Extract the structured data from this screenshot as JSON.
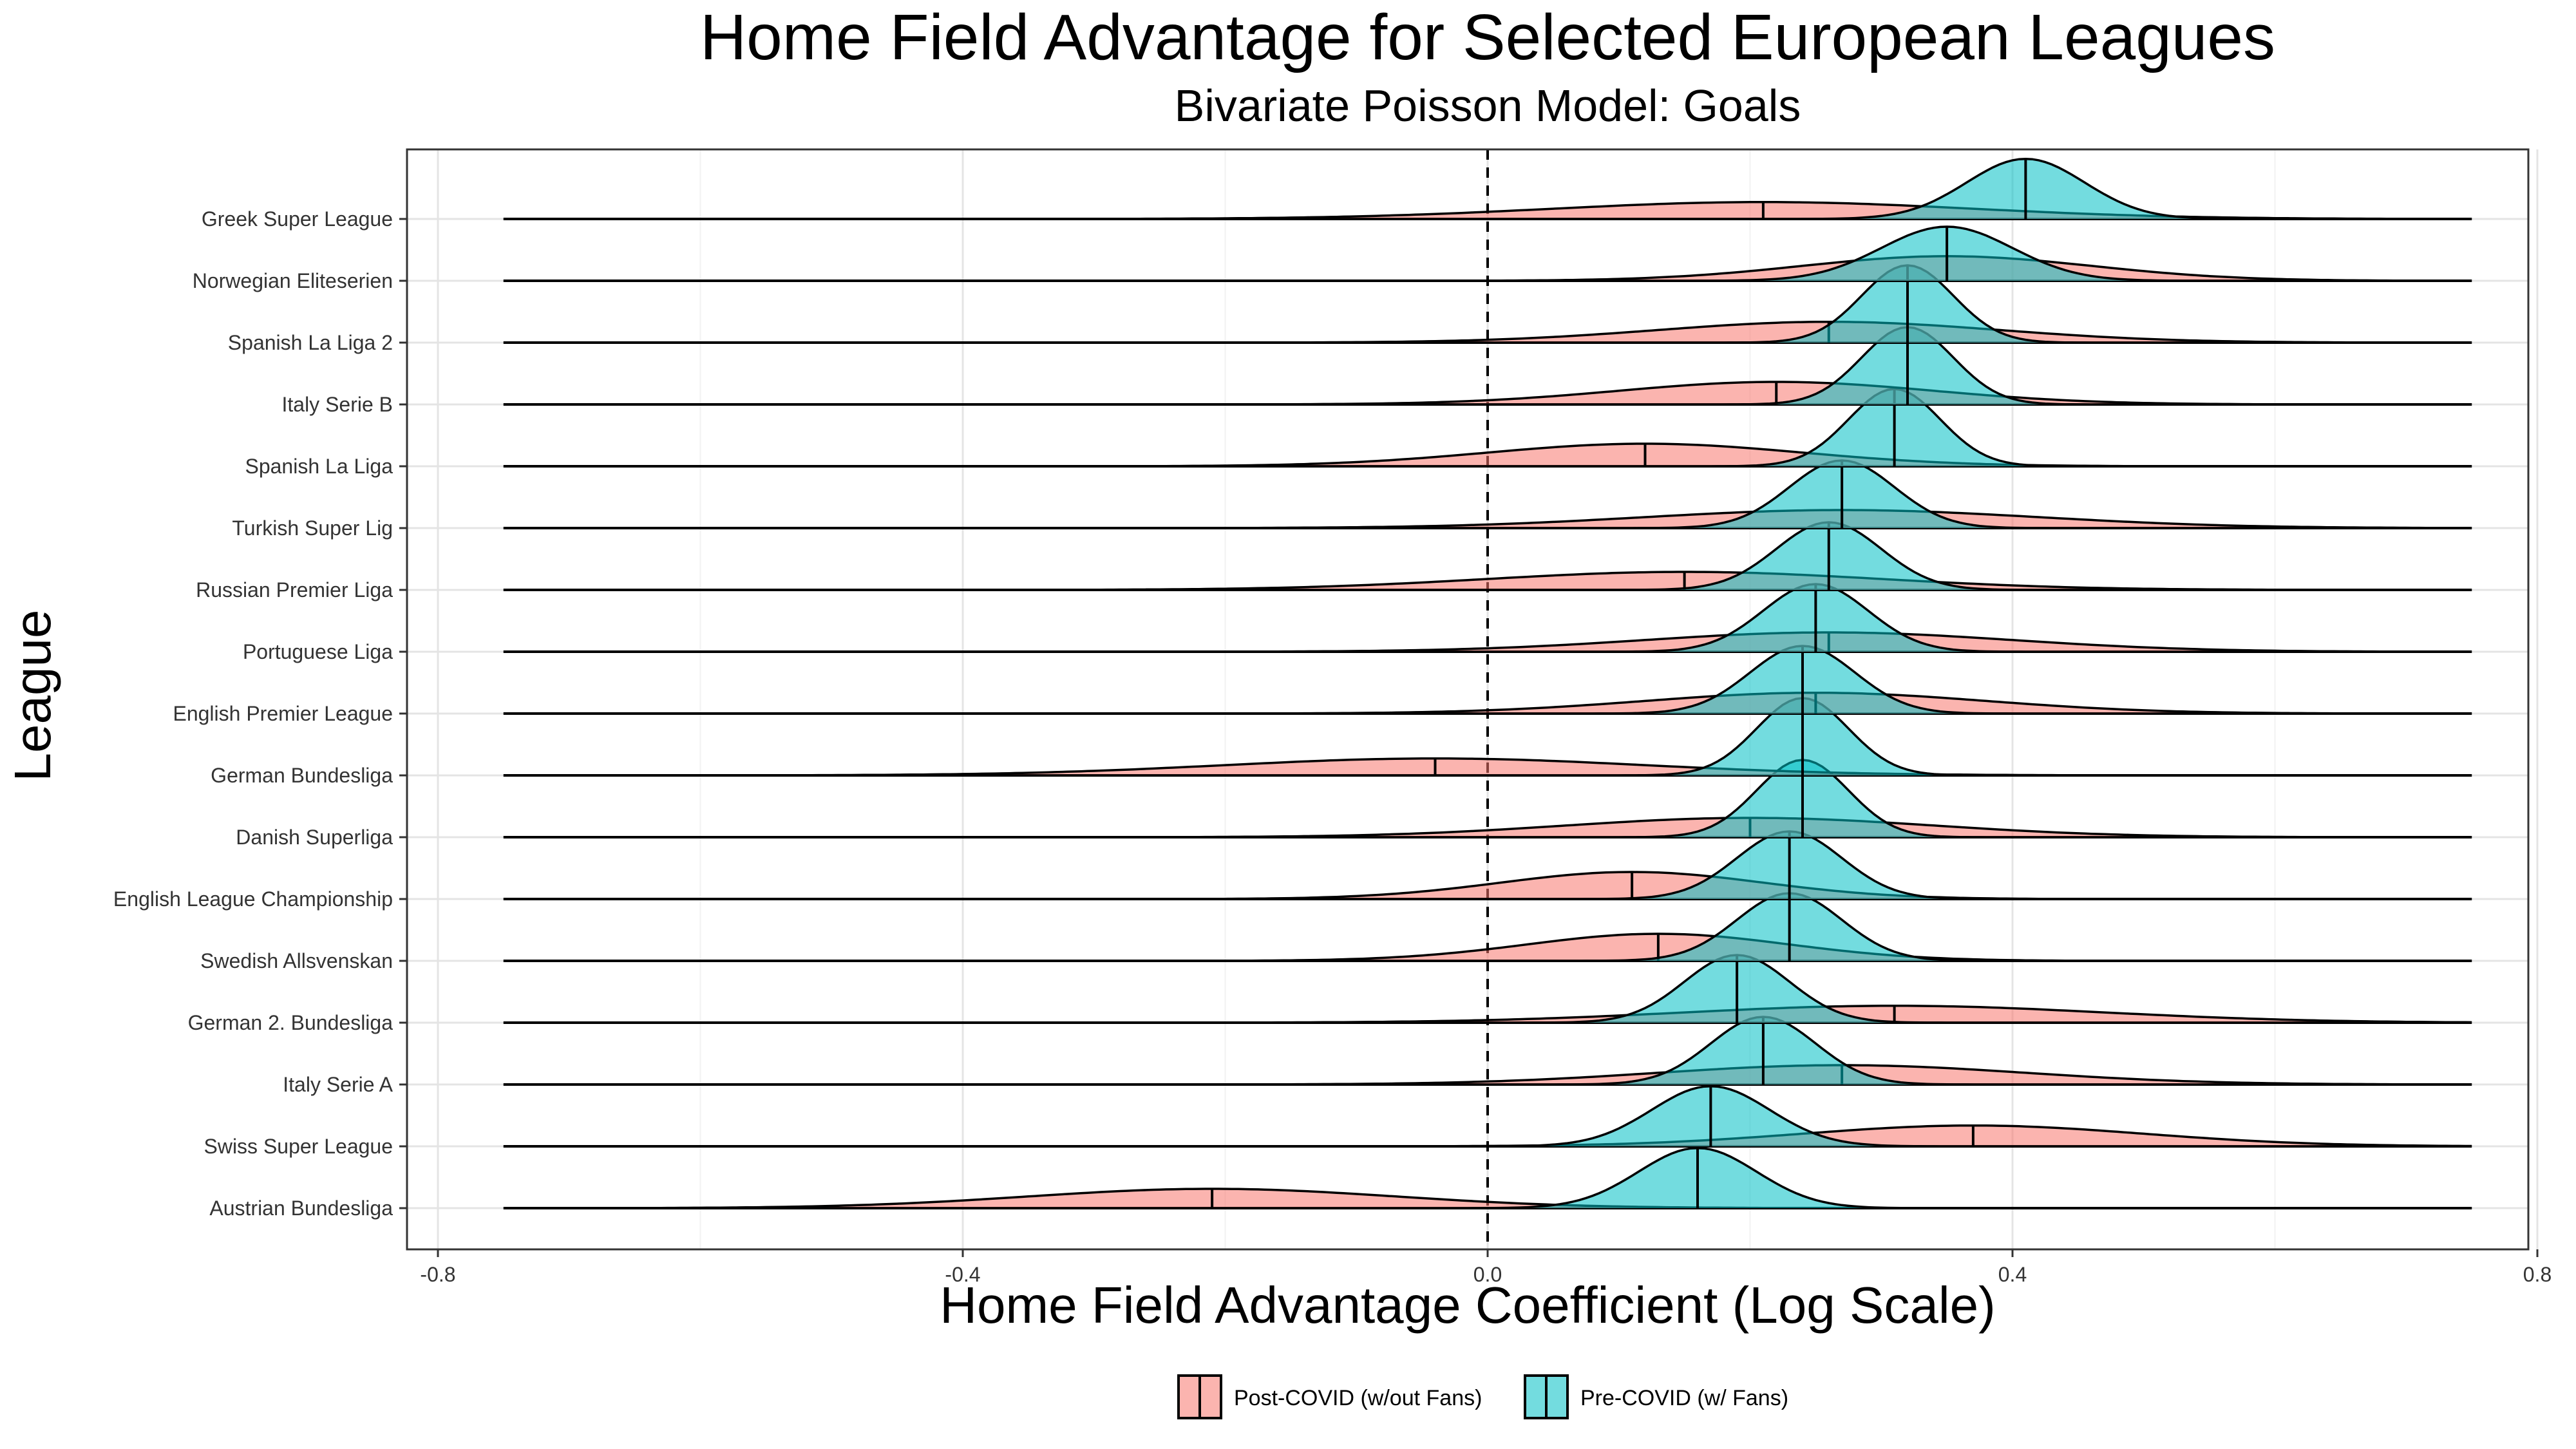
{
  "chart_data": {
    "type": "ridgeline",
    "title": "Home Field Advantage for Selected European Leagues",
    "subtitle": "Bivariate Poisson Model: Goals",
    "xlabel": "Home Field Advantage Coefficient (Log Scale)",
    "ylabel": "League",
    "xlim": [
      -0.8,
      0.8
    ],
    "x_ticks": [
      -0.8,
      -0.4,
      0.0,
      0.4,
      0.8
    ],
    "x_tick_labels": [
      "-0.8",
      "-0.4",
      "0.0",
      "0.4",
      "0.8"
    ],
    "reference_line": 0.0,
    "grid": true,
    "legend_position": "bottom",
    "series": [
      {
        "name": "Post-COVID (w/out Fans)",
        "color": "#F8766D"
      },
      {
        "name": "Pre-COVID (w/ Fans)",
        "color": "#00BFC4"
      }
    ],
    "leagues": [
      {
        "name": "Greek Super League",
        "post_median": 0.21,
        "post_sd": 0.16,
        "pre_median": 0.41,
        "pre_sd": 0.045
      },
      {
        "name": "Norwegian Eliteserien",
        "post_median": 0.35,
        "post_sd": 0.11,
        "pre_median": 0.35,
        "pre_sd": 0.05
      },
      {
        "name": "Spanish La Liga 2",
        "post_median": 0.26,
        "post_sd": 0.13,
        "pre_median": 0.32,
        "pre_sd": 0.035
      },
      {
        "name": "Italy Serie B",
        "post_median": 0.22,
        "post_sd": 0.12,
        "pre_median": 0.32,
        "pre_sd": 0.035
      },
      {
        "name": "Spanish La Liga",
        "post_median": 0.12,
        "post_sd": 0.12,
        "pre_median": 0.31,
        "pre_sd": 0.035
      },
      {
        "name": "Turkish Super Lig",
        "post_median": 0.27,
        "post_sd": 0.15,
        "pre_median": 0.27,
        "pre_sd": 0.04
      },
      {
        "name": "Russian Premier Liga",
        "post_median": 0.15,
        "post_sd": 0.15,
        "pre_median": 0.26,
        "pre_sd": 0.04
      },
      {
        "name": "Portuguese Liga",
        "post_median": 0.26,
        "post_sd": 0.14,
        "pre_median": 0.25,
        "pre_sd": 0.04
      },
      {
        "name": "English Premier League",
        "post_median": 0.25,
        "post_sd": 0.13,
        "pre_median": 0.24,
        "pre_sd": 0.04
      },
      {
        "name": "German Bundesliga",
        "post_median": -0.04,
        "post_sd": 0.16,
        "pre_median": 0.24,
        "pre_sd": 0.035
      },
      {
        "name": "Danish Superliga",
        "post_median": 0.2,
        "post_sd": 0.14,
        "pre_median": 0.24,
        "pre_sd": 0.035
      },
      {
        "name": "English League Championship",
        "post_median": 0.11,
        "post_sd": 0.1,
        "pre_median": 0.23,
        "pre_sd": 0.04
      },
      {
        "name": "Swedish Allsvenskan",
        "post_median": 0.13,
        "post_sd": 0.1,
        "pre_median": 0.23,
        "pre_sd": 0.04
      },
      {
        "name": "German 2. Bundesliga",
        "post_median": 0.31,
        "post_sd": 0.16,
        "pre_median": 0.19,
        "pre_sd": 0.04
      },
      {
        "name": "Italy Serie A",
        "post_median": 0.27,
        "post_sd": 0.14,
        "pre_median": 0.21,
        "pre_sd": 0.04
      },
      {
        "name": "Swiss Super League",
        "post_median": 0.37,
        "post_sd": 0.13,
        "pre_median": 0.17,
        "pre_sd": 0.045
      },
      {
        "name": "Austrian Bundesliga",
        "post_median": -0.21,
        "post_sd": 0.14,
        "pre_median": 0.16,
        "pre_sd": 0.045
      }
    ]
  }
}
